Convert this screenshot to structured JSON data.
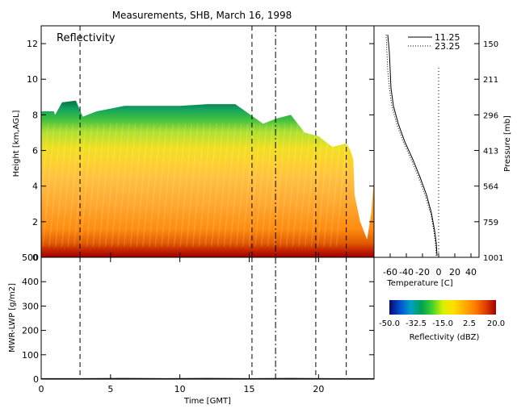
{
  "title": "Measurements, SHB, March 16, 1998",
  "chart_data": [
    {
      "id": "reflectivity",
      "type": "heatmap",
      "title": "Reflectivity",
      "xlabel": "",
      "ylabel": "Height [km,AGL]",
      "xlim": [
        0,
        24
      ],
      "ylim": [
        0,
        13
      ],
      "xticks": [],
      "yticks": [
        0,
        2,
        4,
        6,
        8,
        10,
        12
      ],
      "ytick_labels": [
        "0",
        "2",
        "4",
        "6",
        "8",
        "10",
        "12"
      ],
      "sonde_times_gmt": [
        2.8,
        15.2,
        16.9,
        19.8,
        22.0
      ],
      "echo_top_km": [
        [
          0,
          8.2
        ],
        [
          0.9,
          8.2
        ],
        [
          1.0,
          8.0
        ],
        [
          1.5,
          8.7
        ],
        [
          2.5,
          8.8
        ],
        [
          3.0,
          7.9
        ],
        [
          4.0,
          8.2
        ],
        [
          6.0,
          8.5
        ],
        [
          8.0,
          8.5
        ],
        [
          10.0,
          8.5
        ],
        [
          12.0,
          8.6
        ],
        [
          14.0,
          8.6
        ],
        [
          16.0,
          7.5
        ],
        [
          17.0,
          7.8
        ],
        [
          18.0,
          8.0
        ],
        [
          19.0,
          7.0
        ],
        [
          20.0,
          6.8
        ],
        [
          21.0,
          6.2
        ],
        [
          22.0,
          6.4
        ],
        [
          22.3,
          6.0
        ],
        [
          22.5,
          5.5
        ],
        [
          22.6,
          3.5
        ],
        [
          23.0,
          2.0
        ],
        [
          23.5,
          1.0
        ],
        [
          23.8,
          2.5
        ],
        [
          24.0,
          4.5
        ]
      ],
      "colorbar": {
        "label": "Reflectivity (dBZ)",
        "range": [
          -50.0,
          20.0
        ],
        "tick_labels": [
          "-50.0",
          "-32.5",
          "-15.0",
          "2.5",
          "20.0"
        ],
        "colors": [
          "#0a0a6e",
          "#0050d0",
          "#00a0c8",
          "#00a050",
          "#40d030",
          "#d8f000",
          "#ffe000",
          "#ffb000",
          "#ff8000",
          "#e04000",
          "#a00000"
        ]
      }
    },
    {
      "id": "temperature-profile",
      "type": "line",
      "xlabel": "Temperature [C]",
      "ylabel": "Pressure [mb]",
      "xlim": [
        -80,
        50
      ],
      "xticks": [
        -60,
        -40,
        -20,
        0,
        20,
        40
      ],
      "xtick_labels": [
        "-60",
        "-40",
        "-20",
        "0",
        "20",
        "40"
      ],
      "yticks_km": [
        0,
        2,
        4,
        6,
        8,
        10,
        12
      ],
      "ytick_labels": [
        "1001",
        "759",
        "564",
        "413",
        "296",
        "211",
        "150"
      ],
      "series": [
        {
          "name": "11.25",
          "style": "solid",
          "points": [
            [
              -2,
              0.1
            ],
            [
              -3,
              0.8
            ],
            [
              -5,
              1.5
            ],
            [
              -9,
              2.5
            ],
            [
              -15,
              3.5
            ],
            [
              -23,
              4.5
            ],
            [
              -32,
              5.5
            ],
            [
              -42,
              6.5
            ],
            [
              -50,
              7.5
            ],
            [
              -56,
              8.5
            ],
            [
              -59,
              9.5
            ],
            [
              -60,
              10.5
            ],
            [
              -61,
              11.5
            ],
            [
              -63,
              12.5
            ]
          ]
        },
        {
          "name": "23.25",
          "style": "dotted",
          "points": [
            [
              -3,
              0.1
            ],
            [
              -4,
              0.8
            ],
            [
              -6,
              1.5
            ],
            [
              -10,
              2.5
            ],
            [
              -17,
              3.5
            ],
            [
              -25,
              4.5
            ],
            [
              -34,
              5.5
            ],
            [
              -44,
              6.5
            ],
            [
              -52,
              7.5
            ],
            [
              -58,
              8.5
            ],
            [
              -61,
              9.5
            ],
            [
              -63,
              10.5
            ],
            [
              -64,
              11.5
            ],
            [
              -65,
              12.5
            ]
          ]
        }
      ],
      "reference_line": {
        "x": 0,
        "style": "dotted"
      }
    },
    {
      "id": "lwp",
      "type": "line",
      "xlabel": "Time [GMT]",
      "ylabel": "MWR-LWP [g/m2]",
      "xlim": [
        0,
        24
      ],
      "ylim": [
        0,
        500
      ],
      "xticks": [
        0,
        5,
        10,
        15,
        20
      ],
      "xtick_labels": [
        "0",
        "5",
        "10",
        "15",
        "20"
      ],
      "yticks": [
        0,
        100,
        200,
        300,
        400,
        500
      ],
      "ytick_labels": [
        "0",
        "100",
        "200",
        "300",
        "400",
        "500"
      ],
      "series": [
        {
          "values": [
            [
              0,
              2
            ],
            [
              3,
              2
            ],
            [
              6,
              3
            ],
            [
              9,
              2
            ],
            [
              12,
              3
            ],
            [
              15,
              2
            ],
            [
              18,
              3
            ],
            [
              21,
              2
            ],
            [
              24,
              2
            ]
          ]
        }
      ]
    }
  ]
}
